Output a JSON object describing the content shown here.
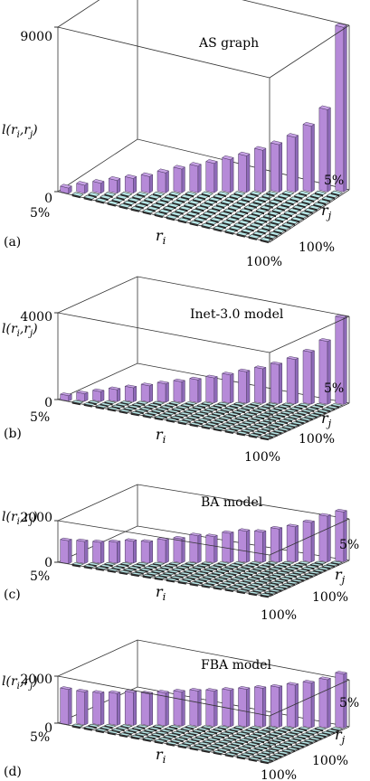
{
  "figure": {
    "x_axis_label": "r",
    "x_axis_label_sub": "i",
    "y_axis_label": "r",
    "y_axis_label_sub": "j",
    "z_axis_label": "l(r",
    "z_axis_label_sub1": "i",
    "z_axis_label_mid": ",r",
    "z_axis_label_sub2": "j",
    "z_axis_label_end": ")",
    "colors": {
      "bar_top": "#c8a2e6",
      "bar_front": "#b68ad8",
      "bar_side": "#8e6ab8",
      "bar_edge": "#4a3a60",
      "tile_fill": "#b8e8e8",
      "box": "#333333"
    }
  },
  "chart_data": [
    {
      "type": "bar3d",
      "panel_label": "(a)",
      "title": "AS graph",
      "xlabel": "r_i",
      "ylabel": "r_j",
      "zlabel": "l(r_i,r_j)",
      "x_tick_first": "5%",
      "x_tick_last": "100%",
      "y_tick_first": "5%",
      "y_tick_last": "100%",
      "z_tick_low": "0",
      "z_tick_high": "9000",
      "zlim": [
        0,
        9000
      ],
      "diagonal_values": [
        300,
        450,
        550,
        700,
        800,
        900,
        1100,
        1300,
        1450,
        1600,
        1800,
        2000,
        2300,
        2600,
        3000,
        3600,
        4500,
        9000
      ],
      "note": "bars along the r_i = r_j diagonal; off-diagonal cells near zero"
    },
    {
      "type": "bar3d",
      "panel_label": "(b)",
      "title": "Inet-3.0 model",
      "xlabel": "r_i",
      "ylabel": "r_j",
      "zlabel": "l(r_i,r_j)",
      "x_tick_first": "5%",
      "x_tick_last": "100%",
      "y_tick_first": "5%",
      "y_tick_last": "100%",
      "z_tick_low": "0",
      "z_tick_high": "4000",
      "zlim": [
        0,
        4000
      ],
      "diagonal_values": [
        250,
        350,
        450,
        550,
        650,
        750,
        850,
        950,
        1050,
        1150,
        1300,
        1450,
        1600,
        1800,
        2050,
        2400,
        2900,
        4000
      ],
      "note": "bars along the r_i = r_j diagonal; off-diagonal cells near zero"
    },
    {
      "type": "bar3d",
      "panel_label": "(c)",
      "title": "BA model",
      "xlabel": "r_i",
      "ylabel": "r_j",
      "zlabel": "l(r_i,r_j)",
      "x_tick_first": "5%",
      "x_tick_last": "100%",
      "y_tick_first": "5%",
      "y_tick_last": "100%",
      "z_tick_low": "0",
      "z_tick_high": "2000",
      "zlim": [
        0,
        2000
      ],
      "diagonal_values": [
        1100,
        1050,
        1000,
        1000,
        1050,
        1000,
        1100,
        1150,
        1300,
        1250,
        1400,
        1500,
        1450,
        1600,
        1700,
        1900,
        2200,
        2400
      ],
      "note": "bars along the r_i = r_j diagonal; off-diagonal cells near zero"
    },
    {
      "type": "bar3d",
      "panel_label": "(d)",
      "title": "FBA model",
      "xlabel": "r_i",
      "ylabel": "r_j",
      "zlabel": "l(r_i,r_j)",
      "x_tick_first": "5%",
      "x_tick_last": "100%",
      "y_tick_first": "5%",
      "y_tick_last": "100%",
      "z_tick_low": "0",
      "z_tick_high": "2000",
      "zlim": [
        0,
        2000
      ],
      "diagonal_values": [
        1500,
        1400,
        1350,
        1350,
        1400,
        1350,
        1400,
        1450,
        1500,
        1500,
        1550,
        1600,
        1650,
        1700,
        1800,
        1900,
        2050,
        2300
      ],
      "note": "bars along the r_i = r_j diagonal; off-diagonal cells near zero"
    }
  ]
}
